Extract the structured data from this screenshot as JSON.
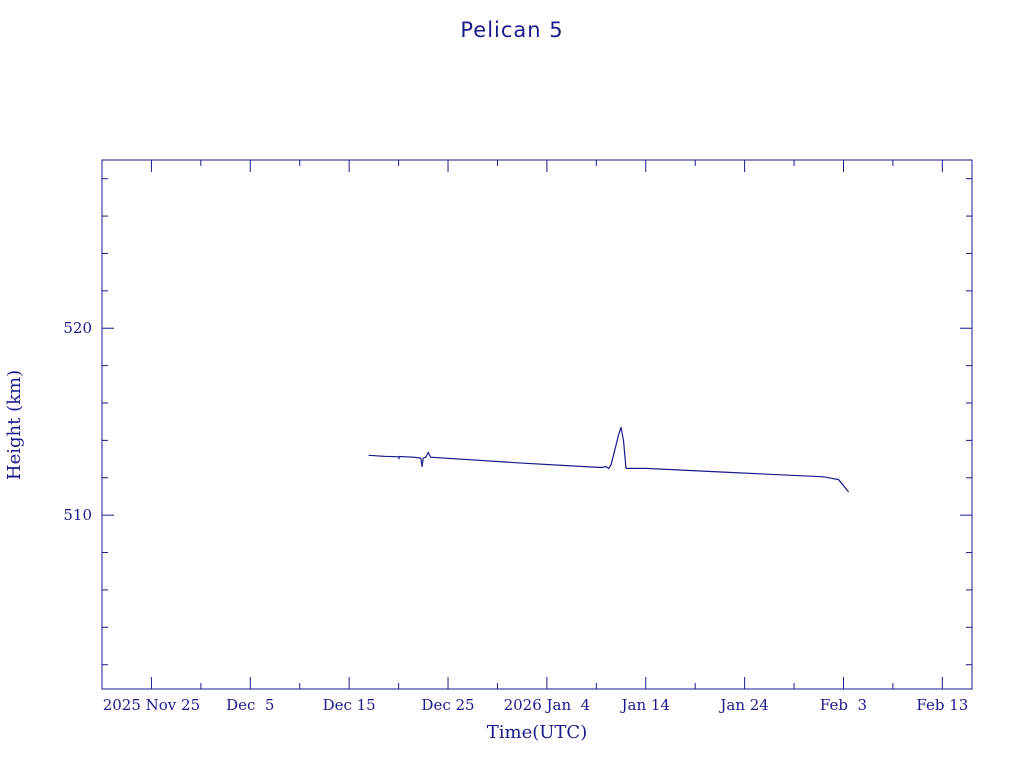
{
  "chart_data": {
    "type": "line",
    "title": "Pelican 5",
    "xlabel": "Time(UTC)",
    "ylabel": "Height (km)",
    "xlim": [
      "2025-11-20",
      "2026-02-16"
    ],
    "ylim": [
      500.7,
      529
    ],
    "x_ticks": [
      {
        "date": "2025-11-25",
        "label": "2025 Nov 25"
      },
      {
        "date": "2025-12-05",
        "label": "Dec  5"
      },
      {
        "date": "2025-12-15",
        "label": "Dec 15"
      },
      {
        "date": "2025-12-25",
        "label": "Dec 25"
      },
      {
        "date": "2026-01-04",
        "label": "2026 Jan  4"
      },
      {
        "date": "2026-01-14",
        "label": "Jan 14"
      },
      {
        "date": "2026-01-24",
        "label": "Jan 24"
      },
      {
        "date": "2026-02-03",
        "label": "Feb  3"
      },
      {
        "date": "2026-02-13",
        "label": "Feb 13"
      }
    ],
    "y_ticks": [
      510,
      520
    ],
    "y_minor_step": 2,
    "grid": false,
    "series": [
      {
        "color": "#1a1a8c",
        "points": [
          [
            "2025-12-17T00:00",
            513.2
          ],
          [
            "2025-12-18T12:00",
            513.15
          ],
          [
            "2025-12-20T00:00",
            513.12
          ],
          [
            "2025-12-20T01:00",
            513.05
          ],
          [
            "2025-12-20T02:00",
            513.14
          ],
          [
            "2025-12-21T12:00",
            513.1
          ],
          [
            "2025-12-22T06:00",
            513.05
          ],
          [
            "2025-12-22T09:00",
            512.6
          ],
          [
            "2025-12-22T12:00",
            513.05
          ],
          [
            "2025-12-22T18:00",
            513.1
          ],
          [
            "2025-12-23T00:00",
            513.35
          ],
          [
            "2025-12-23T06:00",
            513.1
          ],
          [
            "2026-01-01T00:00",
            512.8
          ],
          [
            "2026-01-06T00:00",
            512.65
          ],
          [
            "2026-01-09T12:00",
            512.55
          ],
          [
            "2026-01-10T00:00",
            512.6
          ],
          [
            "2026-01-10T06:00",
            512.5
          ],
          [
            "2026-01-10T12:00",
            512.7
          ],
          [
            "2026-01-11T06:00",
            514.3
          ],
          [
            "2026-01-11T12:00",
            514.7
          ],
          [
            "2026-01-11T18:00",
            514.0
          ],
          [
            "2026-01-12T00:00",
            512.5
          ],
          [
            "2026-01-14T00:00",
            512.5
          ],
          [
            "2026-01-24T00:00",
            512.25
          ],
          [
            "2026-02-01T00:00",
            512.05
          ],
          [
            "2026-02-02T00:00",
            511.95
          ],
          [
            "2026-02-02T12:00",
            511.9
          ],
          [
            "2026-02-03T12:00",
            511.25
          ]
        ]
      }
    ]
  }
}
